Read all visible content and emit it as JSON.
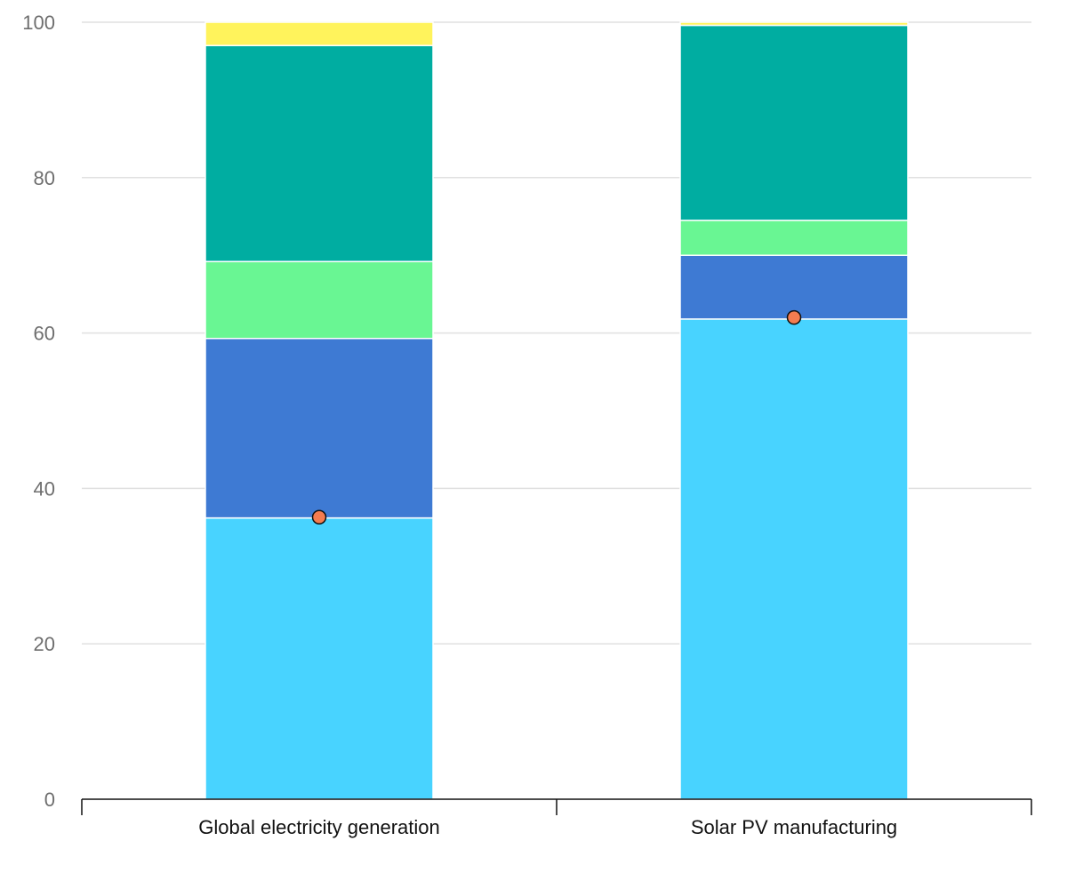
{
  "chart_data": {
    "type": "bar",
    "stacked": true,
    "title": "",
    "xlabel": "",
    "ylabel": "",
    "ylim": [
      0,
      100
    ],
    "yticks": [
      0,
      20,
      40,
      60,
      80,
      100
    ],
    "grid": true,
    "categories": [
      "Global electricity generation",
      "Solar PV manufacturing"
    ],
    "series": [
      {
        "values": [
          36.2,
          61.8
        ],
        "color": "#48d3ff"
      },
      {
        "values": [
          23.1,
          8.2
        ],
        "color": "#3e7ad3"
      },
      {
        "values": [
          9.9,
          4.5
        ],
        "color": "#69f693"
      },
      {
        "values": [
          27.8,
          25.1
        ],
        "color": "#00ada1"
      },
      {
        "values": [
          3.0,
          0.4
        ],
        "color": "#fff35c"
      }
    ],
    "markers": {
      "values": [
        36.3,
        62.0
      ],
      "color": "#f47c50"
    }
  }
}
